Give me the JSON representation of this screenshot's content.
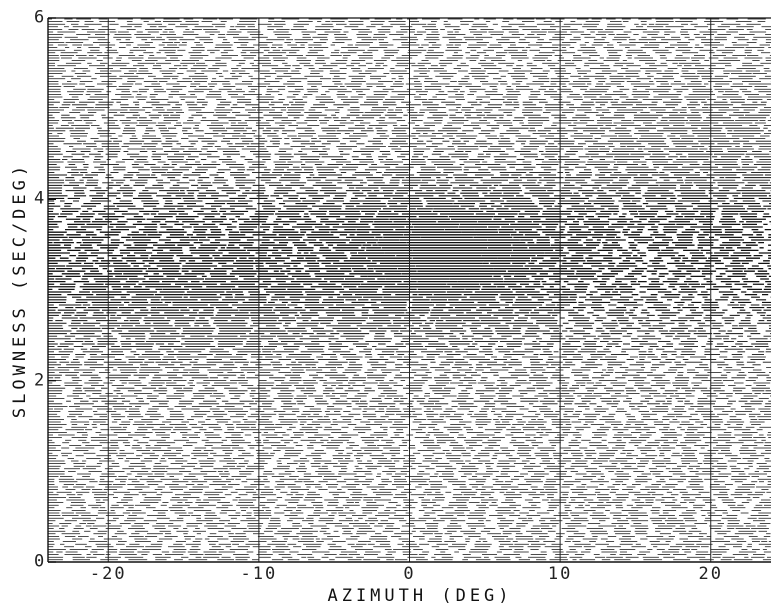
{
  "chart_data": {
    "type": "heatmap",
    "title": "",
    "xlabel": "AZIMUTH (DEG)",
    "ylabel": "SLOWNESS (SEC/DEG)",
    "xlim": [
      -24,
      24
    ],
    "ylim": [
      0,
      6
    ],
    "x_ticks": [
      "-20",
      "-10",
      "0",
      "10",
      "20"
    ],
    "y_ticks": [
      "0",
      "2",
      "4",
      "6"
    ],
    "grid": true,
    "color": "#111111",
    "peaks": [
      {
        "azimuth": 1,
        "slowness": 3.4,
        "relative_power": 1.0
      },
      {
        "azimuth": -16,
        "slowness": 2.9,
        "relative_power": 0.6
      },
      {
        "azimuth": 19,
        "slowness": 4.5,
        "relative_power": 0.5
      }
    ]
  }
}
